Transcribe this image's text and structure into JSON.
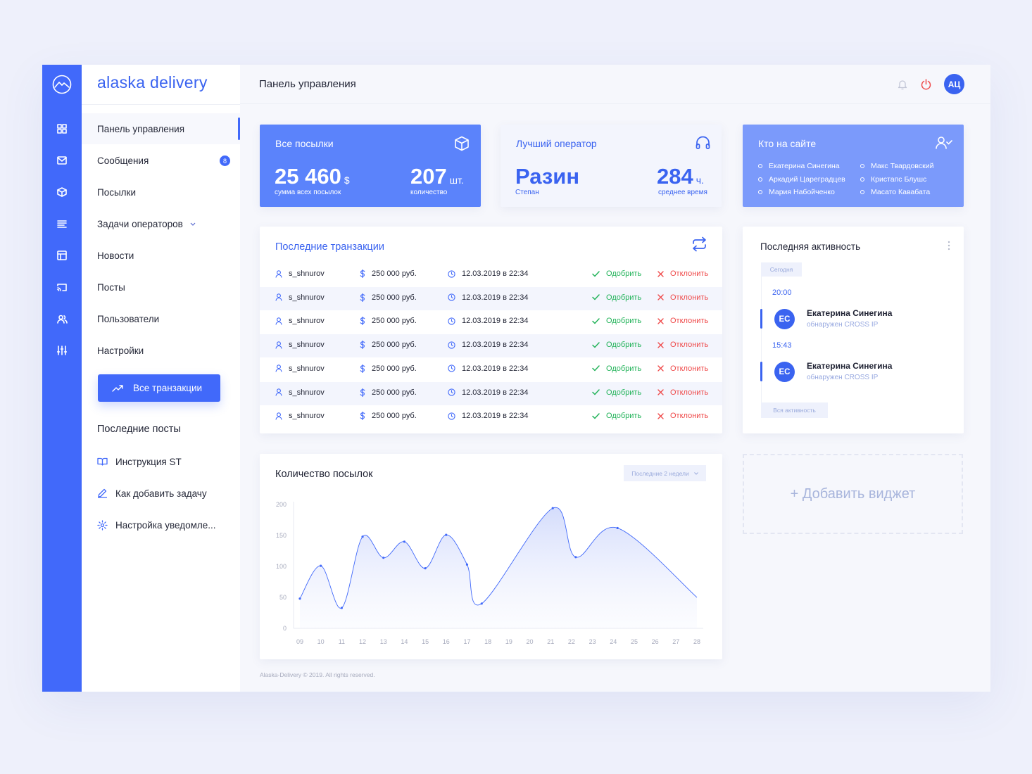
{
  "brand": "alaska delivery",
  "header": {
    "title": "Панель управления",
    "avatar": "АЦ",
    "icons": [
      "bell-icon",
      "power-icon"
    ]
  },
  "nav": {
    "items": [
      {
        "label": "Панель управления",
        "active": true
      },
      {
        "label": "Сообщения",
        "badge": "8"
      },
      {
        "label": "Посылки"
      },
      {
        "label": "Задачи операторов",
        "has_dropdown": true
      },
      {
        "label": "Новости"
      },
      {
        "label": "Посты"
      },
      {
        "label": "Пользователи"
      },
      {
        "label": "Настройки"
      }
    ],
    "button": "Все транзакции",
    "recent_title": "Последние посты",
    "recent_posts": [
      "Инструкция ST",
      "Как добавить задачу",
      "Настройка уведомле..."
    ]
  },
  "stats": {
    "parcels": {
      "title": "Все посылки",
      "sum": "25 460",
      "sum_unit": "$",
      "sum_caption": "сумма всех посылок",
      "count": "207",
      "count_unit": "шт.",
      "count_caption": "количество"
    },
    "operator": {
      "title": "Лучший оператор",
      "name": "Разин",
      "first_name": "Степан",
      "hours": "284",
      "hours_unit": "ч.",
      "hours_caption": "среднее время"
    },
    "online": {
      "title": "Кто на сайте",
      "users_left": [
        "Екатерина Синегина",
        "Аркадий Цареградцев",
        "Мария Набойченко"
      ],
      "users_right": [
        "Макс Твардовский",
        "Кристапс Блушс",
        "Масато Кавабата"
      ]
    }
  },
  "transactions": {
    "title": "Последние транзакции",
    "approve_label": "Одобрить",
    "reject_label": "Отклонить",
    "rows": [
      {
        "user": "s_shnurov",
        "amount": "250 000 руб.",
        "date": "12.03.2019 в 22:34"
      },
      {
        "user": "s_shnurov",
        "amount": "250 000 руб.",
        "date": "12.03.2019 в 22:34"
      },
      {
        "user": "s_shnurov",
        "amount": "250 000 руб.",
        "date": "12.03.2019 в 22:34"
      },
      {
        "user": "s_shnurov",
        "amount": "250 000 руб.",
        "date": "12.03.2019 в 22:34"
      },
      {
        "user": "s_shnurov",
        "amount": "250 000 руб.",
        "date": "12.03.2019 в 22:34"
      },
      {
        "user": "s_shnurov",
        "amount": "250 000 руб.",
        "date": "12.03.2019 в 22:34"
      },
      {
        "user": "s_shnurov",
        "amount": "250 000 руб.",
        "date": "12.03.2019 в 22:34"
      }
    ]
  },
  "activity": {
    "title": "Последняя активность",
    "day": "Сегодня",
    "events": [
      {
        "time": "20:00",
        "initials": "ЕС",
        "name": "Екатерина Синегина",
        "action": "обнаружен CROSS IP"
      },
      {
        "time": "15:43",
        "initials": "ЕС",
        "name": "Екатерина Синегина",
        "action": "обнаружен CROSS IP"
      }
    ],
    "all_label": "Вся активность"
  },
  "chart_data": {
    "type": "line",
    "title": "Количество посылок",
    "filter": "Последние 2 недели",
    "x": [
      "09",
      "10",
      "11",
      "12",
      "13",
      "14",
      "15",
      "16",
      "17",
      "18",
      "19",
      "20",
      "21",
      "22",
      "23",
      "24",
      "25",
      "26",
      "27",
      "28"
    ],
    "points": [
      [
        9,
        48
      ],
      [
        10,
        101
      ],
      [
        11,
        33
      ],
      [
        12,
        148
      ],
      [
        13,
        114
      ],
      [
        14,
        140
      ],
      [
        15,
        97
      ],
      [
        16,
        151
      ],
      [
        17,
        103
      ],
      [
        17.7,
        40
      ],
      [
        21.1,
        194
      ],
      [
        22.2,
        115
      ],
      [
        24.2,
        162
      ]
    ],
    "end_point": [
      28,
      50
    ],
    "y_ticks": [
      "200",
      "150",
      "100",
      "50",
      "0"
    ],
    "ylim": [
      0,
      200
    ],
    "accent": "#4169fa"
  },
  "add_widget": "+ Добавить виджет",
  "footer": "Alaska-Delivery © 2019. All rights reserved."
}
